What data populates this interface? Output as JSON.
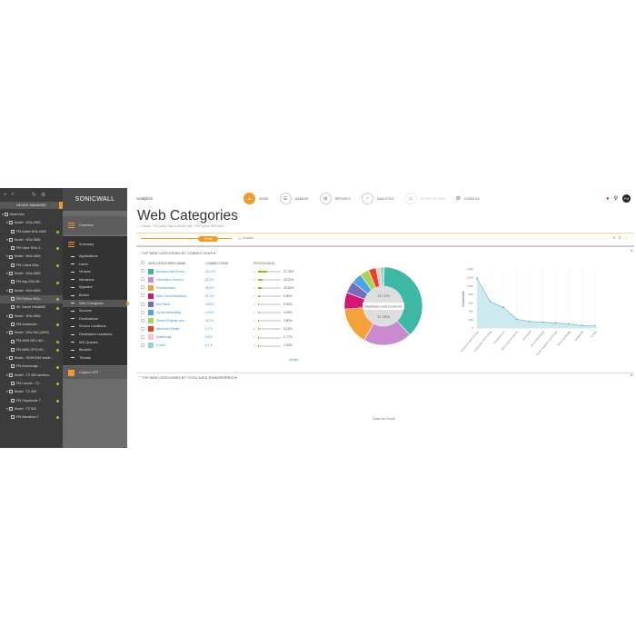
{
  "device_manager": {
    "title": "DEVICE MANAGER",
    "tree": [
      {
        "label": "NodeView",
        "level": 0
      },
      {
        "label": "Model : NSa 2650",
        "level": 1
      },
      {
        "label": "PM Adder NSa 2650",
        "level": 2
      },
      {
        "label": "Model : NSa 3650",
        "level": 1
      },
      {
        "label": "PM Viper NSa 3...",
        "level": 2
      },
      {
        "label": "Model : NSa 4650",
        "level": 1
      },
      {
        "label": "PM Cobra NSa...",
        "level": 2
      },
      {
        "label": "Model : NSa 5650",
        "level": 1
      },
      {
        "label": "PM Asp NSa 56...",
        "level": 2
      },
      {
        "label": "Model : NSa 6650",
        "level": 1
      },
      {
        "label": "PM Python NSa...",
        "level": 2,
        "selected": true
      },
      {
        "label": "SE Camel NSa6650",
        "level": 2
      },
      {
        "label": "Model : NSa 9650",
        "level": 1
      },
      {
        "label": "PM Anaconda ...",
        "level": 2
      },
      {
        "label": "Model : NSv 400 (AWS)",
        "level": 1
      },
      {
        "label": "PM AWS-DEV-NS...",
        "level": 2
      },
      {
        "label": "PM AWS-OPS-NS...",
        "level": 2
      },
      {
        "label": "Model : SOHO250 wirele...",
        "level": 1
      },
      {
        "label": "PM Anchorage ...",
        "level": 2
      },
      {
        "label": "Model : TZ 350 wireless...",
        "level": 1
      },
      {
        "label": "PM Laredo - TZ...",
        "level": 2
      },
      {
        "label": "Model : TZ 400",
        "level": 1
      },
      {
        "label": "PM Sayahrude T...",
        "level": 2
      },
      {
        "label": "Model : TZ 500",
        "level": 1
      },
      {
        "label": "PM Marathon T...",
        "level": 2
      }
    ]
  },
  "nav": {
    "logo": "SONICWALL",
    "overview": "Overview",
    "summary": "Summary",
    "items": [
      "Applications",
      "Users",
      "Viruses",
      "Intrusions",
      "Spyware",
      "Botnet",
      "Web Categories",
      "Sources",
      "Destinations",
      "Source Locations",
      "Destination Locations",
      "WH Queues",
      "Blocked",
      "Threats"
    ],
    "active": "Web Categories",
    "capture": "Capture ATP"
  },
  "header": {
    "app": "Analytics",
    "nav": [
      "HOME",
      "MANAGE",
      "REPORTS",
      "ANALYTICS",
      "NOTIFICATIONS",
      "CONSOLE"
    ],
    "avatar": "PM"
  },
  "page": {
    "title": "Web Categories",
    "breadcrumb": "/ Tenant - PM Demo Capture/Dual Units / PM Python NSa 6650",
    "range": "1 Day",
    "custom": "Custom"
  },
  "section1": {
    "title": "TOP WEB CATEGORIES BY CONNECTIONS",
    "columns": [
      "WEB CATEGORIES NAME",
      "CONNECTIONS",
      "PERCENTAGE"
    ],
    "rows": [
      {
        "name": "Business and Econo...",
        "conn": "117.9 K",
        "pct": "37.78%",
        "v": 37.78,
        "color": "#3cb8a5"
      },
      {
        "name": "Information Technol...",
        "conn": "62.5 K",
        "pct": "20.02%",
        "v": 20.02,
        "color": "#c98ad0"
      },
      {
        "name": "Entertainment",
        "conn": "48.9 K",
        "pct": "15.64%",
        "v": 15.64,
        "color": "#f6a13b"
      },
      {
        "name": "Web Communications",
        "conn": "21.3 K",
        "pct": "6.80%",
        "v": 6.8,
        "color": "#d6156f"
      },
      {
        "name": "Not Rated",
        "conn": "15.6 K",
        "pct": "5.00%",
        "v": 5.0,
        "color": "#7a6bb8"
      },
      {
        "name": "Social Networking",
        "conn": "13.5 K",
        "pct": "4.33%",
        "v": 4.33,
        "color": "#4aa5e8"
      },
      {
        "name": "Search Engines and...",
        "conn": "11.9 K",
        "pct": "3.80%",
        "v": 3.8,
        "color": "#a8d35a"
      },
      {
        "name": "News and Media",
        "conn": "9.7 K",
        "pct": "3.12%",
        "v": 3.12,
        "color": "#ee4123"
      },
      {
        "name": "Multimedia",
        "conn": "5.6 K",
        "pct": "1.77%",
        "v": 1.77,
        "color": "#f5c6c0"
      },
      {
        "name": "E-Mail",
        "conn": "5.1 K",
        "pct": "1.63%",
        "v": 1.63,
        "color": "#8fd6d4"
      }
    ],
    "donut_center": {
      "value": "117.9 K",
      "label": "Business and Econom",
      "pct": "37.78%"
    },
    "details": "details..."
  },
  "chart_data": {
    "type": "area",
    "ylabel": "Connections",
    "ylim": [
      0,
      140000
    ],
    "yticks": [
      "0",
      "20K",
      "40K",
      "60K",
      "80K",
      "100K",
      "120K",
      "140K"
    ],
    "categories": [
      "Business and Economy",
      "Information Technology",
      "Entertainment",
      "Web Communications",
      "Not Rated",
      "Social Networking",
      "Search Engines and Portals",
      "News and Media",
      "Multimedia",
      "E-Mail"
    ],
    "values": [
      117900,
      62500,
      48900,
      21300,
      15600,
      13500,
      11900,
      9700,
      5600,
      5100
    ]
  },
  "section2": {
    "title": "TOP WEB CATEGORIES BY TOTAL DATA TRANSFERRED",
    "empty": "Data not found"
  }
}
